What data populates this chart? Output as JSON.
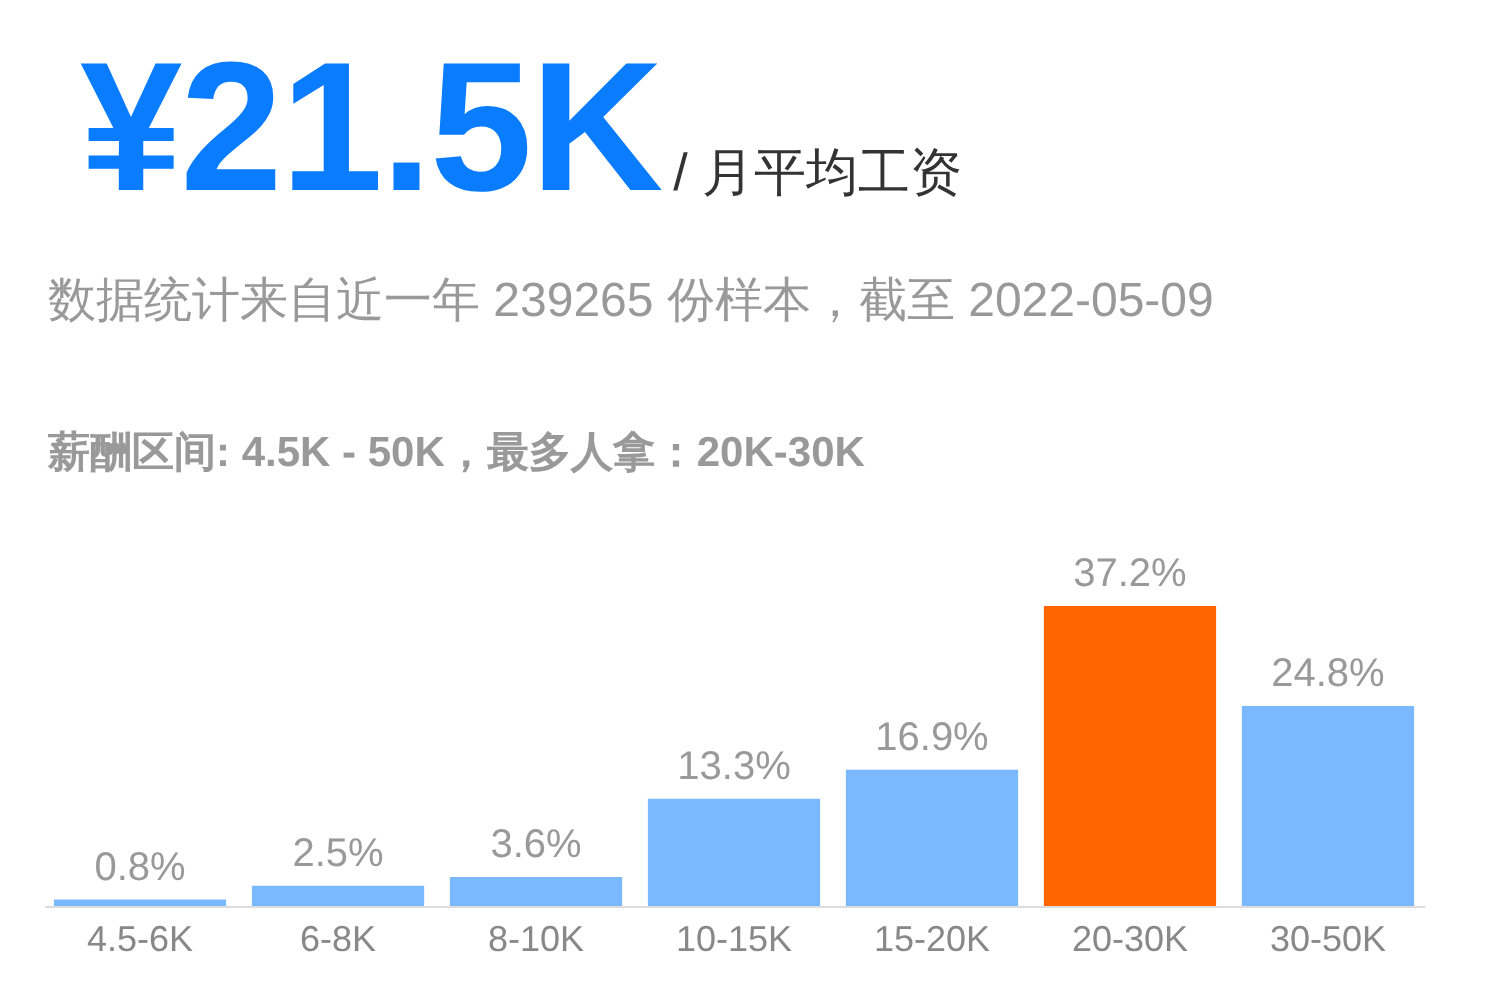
{
  "chart_data": {
    "type": "bar",
    "title": "¥21.5K",
    "subtitle": "/ 月平均工资",
    "annotations": [
      "数据统计来自近一年 239265 份样本，截至 2022-05-09",
      "薪酬区间: 4.5K - 50K，最多人拿：20K-30K"
    ],
    "categories": [
      "4.5-6K",
      "6-8K",
      "8-10K",
      "10-15K",
      "15-20K",
      "20-30K",
      "30-50K"
    ],
    "values": [
      0.8,
      2.5,
      3.6,
      13.3,
      16.9,
      37.2,
      24.8
    ],
    "value_labels": [
      "0.8%",
      "2.5%",
      "3.6%",
      "13.3%",
      "16.9%",
      "37.2%",
      "24.8%"
    ],
    "colors": [
      "#7ab8ff",
      "#7ab8ff",
      "#7ab8ff",
      "#7ab8ff",
      "#7ab8ff",
      "#ff6600",
      "#7ab8ff"
    ],
    "grid": false,
    "legend": false
  }
}
